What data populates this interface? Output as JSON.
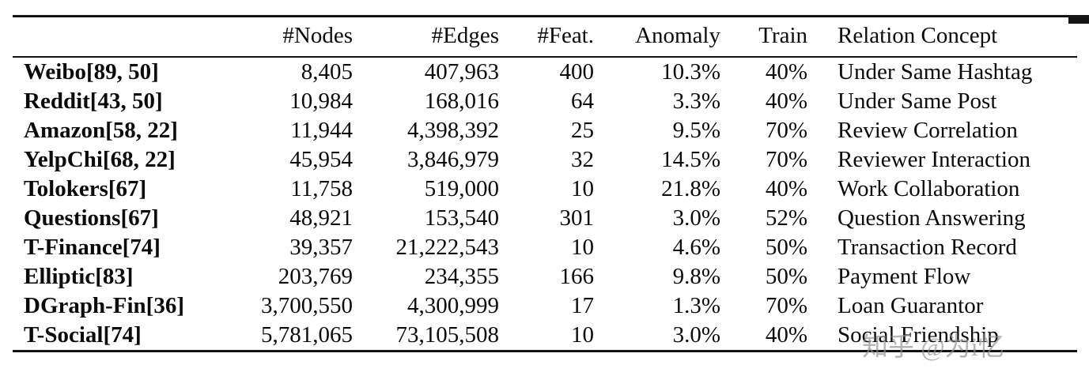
{
  "table": {
    "headers": [
      "",
      "#Nodes",
      "#Edges",
      "#Feat.",
      "Anomaly",
      "Train",
      "Relation Concept"
    ],
    "rows": [
      {
        "name": "Weibo[89, 50]",
        "nodes": "8,405",
        "edges": "407,963",
        "feat": "400",
        "anomaly": "10.3%",
        "train": "40%",
        "relation": "Under Same Hashtag"
      },
      {
        "name": "Reddit[43, 50]",
        "nodes": "10,984",
        "edges": "168,016",
        "feat": "64",
        "anomaly": "3.3%",
        "train": "40%",
        "relation": "Under Same Post"
      },
      {
        "name": "Amazon[58, 22]",
        "nodes": "11,944",
        "edges": "4,398,392",
        "feat": "25",
        "anomaly": "9.5%",
        "train": "70%",
        "relation": "Review Correlation"
      },
      {
        "name": "YelpChi[68, 22]",
        "nodes": "45,954",
        "edges": "3,846,979",
        "feat": "32",
        "anomaly": "14.5%",
        "train": "70%",
        "relation": "Reviewer Interaction"
      },
      {
        "name": "Tolokers[67]",
        "nodes": "11,758",
        "edges": "519,000",
        "feat": "10",
        "anomaly": "21.8%",
        "train": "40%",
        "relation": "Work Collaboration"
      },
      {
        "name": "Questions[67]",
        "nodes": "48,921",
        "edges": "153,540",
        "feat": "301",
        "anomaly": "3.0%",
        "train": "52%",
        "relation": "Question Answering"
      },
      {
        "name": "T-Finance[74]",
        "nodes": "39,357",
        "edges": "21,222,543",
        "feat": "10",
        "anomaly": "4.6%",
        "train": "50%",
        "relation": "Transaction Record"
      },
      {
        "name": "Elliptic[83]",
        "nodes": "203,769",
        "edges": "234,355",
        "feat": "166",
        "anomaly": "9.8%",
        "train": "50%",
        "relation": "Payment Flow"
      },
      {
        "name": "DGraph-Fin[36]",
        "nodes": "3,700,550",
        "edges": "4,300,999",
        "feat": "17",
        "anomaly": "1.3%",
        "train": "70%",
        "relation": "Loan Guarantor"
      },
      {
        "name": "T-Social[74]",
        "nodes": "5,781,065",
        "edges": "73,105,508",
        "feat": "10",
        "anomaly": "3.0%",
        "train": "40%",
        "relation": "Social Friendship"
      }
    ]
  },
  "watermark": {
    "text": "知乎 @为i忆"
  }
}
